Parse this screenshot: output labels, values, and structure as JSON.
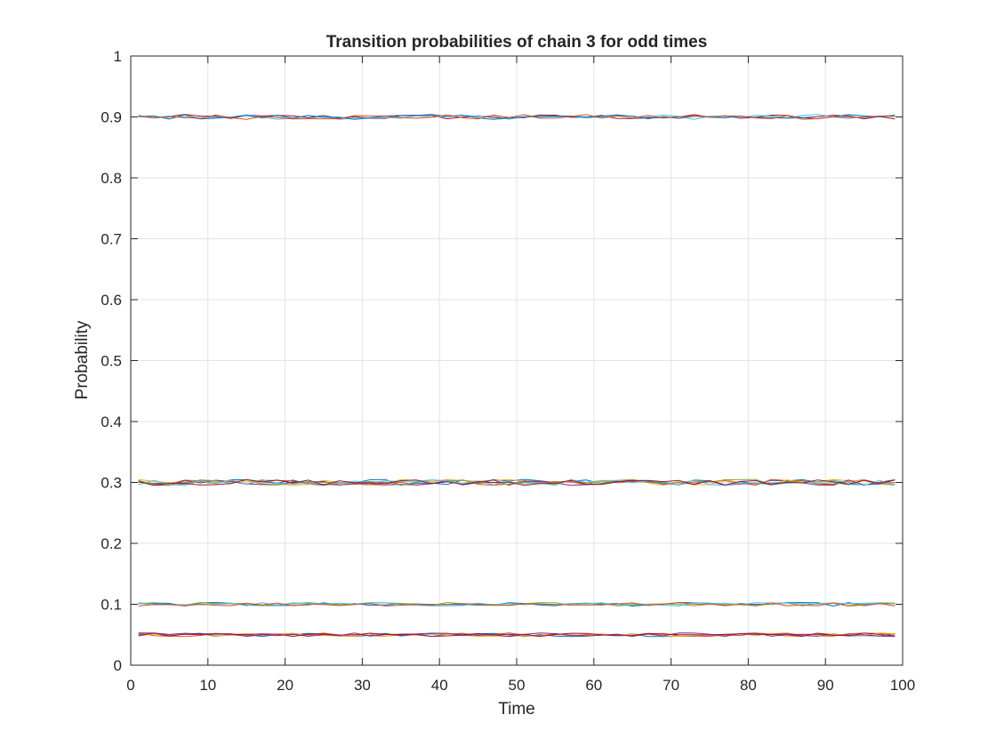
{
  "chart_data": {
    "type": "line",
    "title": "Transition probabilities of chain 3 for odd times",
    "xlabel": "Time",
    "ylabel": "Probability",
    "xlim": [
      0,
      100
    ],
    "ylim": [
      0,
      1
    ],
    "xticks": [
      "0",
      "10",
      "20",
      "30",
      "40",
      "50",
      "60",
      "70",
      "80",
      "90",
      "100"
    ],
    "yticks": [
      "0",
      "0.1",
      "0.2",
      "0.3",
      "0.4",
      "0.5",
      "0.6",
      "0.7",
      "0.8",
      "0.9",
      "1"
    ],
    "grid": true,
    "legend": "none",
    "x": [
      1,
      3,
      5,
      7,
      9,
      11,
      13,
      15,
      17,
      19,
      21,
      23,
      25,
      27,
      29,
      31,
      33,
      35,
      37,
      39,
      41,
      43,
      45,
      47,
      49,
      51,
      53,
      55,
      57,
      59,
      61,
      63,
      65,
      67,
      69,
      71,
      73,
      75,
      77,
      79,
      81,
      83,
      85,
      87,
      89,
      91,
      93,
      95,
      97,
      99
    ],
    "series_levels": [
      0.9,
      0.9,
      0.9,
      0.9,
      0.3,
      0.3,
      0.3,
      0.3,
      0.3,
      0.3,
      0.3,
      0.1,
      0.1,
      0.1,
      0.1,
      0.05,
      0.05,
      0.05,
      0.05,
      0.05,
      0
    ],
    "series_amplitude": [
      0.004,
      0.004,
      0.004,
      0.004,
      0.005,
      0.005,
      0.005,
      0.005,
      0.005,
      0.005,
      0.005,
      0.003,
      0.003,
      0.003,
      0.003,
      0.003,
      0.003,
      0.003,
      0.003,
      0.003,
      0
    ],
    "series_colors": [
      "#A2142F",
      "#4DBEEE",
      "#0072BD",
      "#D95319",
      "#0072BD",
      "#D95319",
      "#EDB120",
      "#7E2F8E",
      "#77AC30",
      "#4DBEEE",
      "#A2142F",
      "#0072BD",
      "#77AC30",
      "#4DBEEE",
      "#D95319",
      "#0072BD",
      "#D95319",
      "#EDB120",
      "#7E2F8E",
      "#A2142F",
      "#0072BD"
    ]
  }
}
